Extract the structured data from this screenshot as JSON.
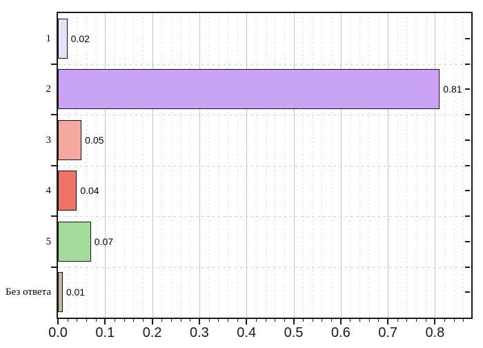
{
  "chart_data": {
    "type": "bar",
    "orientation": "horizontal",
    "title": "",
    "xlabel": "",
    "ylabel": "",
    "categories": [
      "1",
      "2",
      "3",
      "4",
      "5",
      "Без ответа"
    ],
    "values": [
      0.02,
      0.81,
      0.05,
      0.04,
      0.07,
      0.01
    ],
    "value_labels": [
      "0.02",
      "0.81",
      "0.05",
      "0.04",
      "0.07",
      "0.01"
    ],
    "bar_colors": [
      "#e8dff8",
      "#caa3f5",
      "#f4a8a0",
      "#ee7468",
      "#a4da9c",
      "#c7b3a3"
    ],
    "bar_border_color": "#141414",
    "xlim": [
      0,
      0.877
    ],
    "x_major_ticks": [
      0.0,
      0.1,
      0.2,
      0.3,
      0.4,
      0.5,
      0.6,
      0.7,
      0.8
    ],
    "x_tick_labels": [
      "0.0",
      "0.1",
      "0.2",
      "0.3",
      "0.4",
      "0.5",
      "0.6",
      "0.7",
      "0.8"
    ],
    "x_minor_step": 0.02,
    "grid": {
      "vertical_major": "solid",
      "vertical_minor": "dashed",
      "row_boundaries": "dashed",
      "major_color": "#c4c4c4",
      "minor_color": "#d8d8d8",
      "row_color": "#c9c9c9"
    },
    "axis_color": "#1a1a1a",
    "plot_background": "#ffffff",
    "legend": "none"
  }
}
